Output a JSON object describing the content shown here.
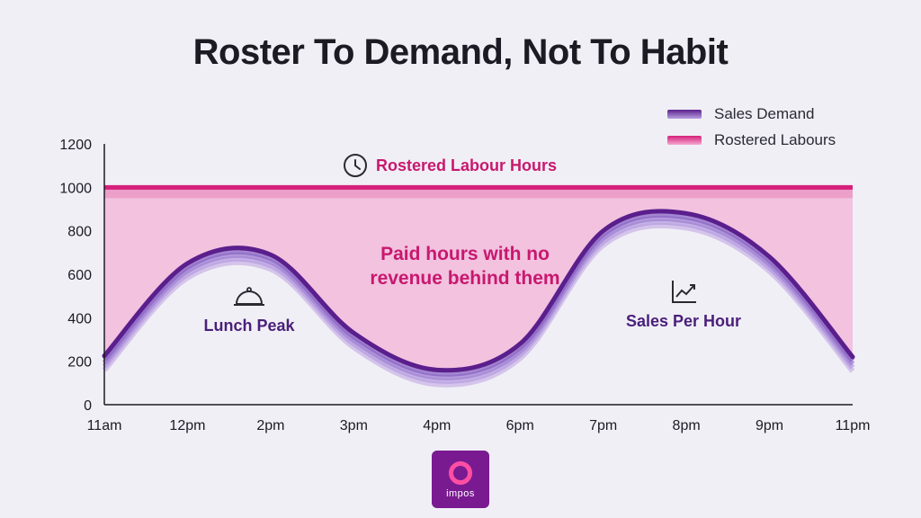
{
  "page": {
    "title": "Roster To Demand, Not To Habit"
  },
  "logo": {
    "text": "impos",
    "color": "#7a1a91"
  },
  "colors": {
    "demand": "#5a1f8c",
    "labour": "#d61f7a",
    "gap_fill": "#f1bfdd",
    "accent_text": "#c8186f",
    "demand_text": "#4a1f7a"
  },
  "legend": {
    "position": "top-right",
    "items": [
      {
        "label": "Sales Demand",
        "color": "#5a1f8c"
      },
      {
        "label": "Rostered Labours",
        "color": "#d61f7a"
      }
    ]
  },
  "annotations": {
    "labour_line": "Rostered Labour Hours",
    "gap_line1": "Paid hours with no",
    "gap_line2": "revenue behind them",
    "lunch": "Lunch Peak",
    "sales": "Sales Per Hour"
  },
  "chart_data": {
    "type": "area",
    "categories": [
      "11am",
      "12pm",
      "2pm",
      "3pm",
      "4pm",
      "6pm",
      "7pm",
      "8pm",
      "9pm",
      "11pm"
    ],
    "ylim": [
      0,
      1200
    ],
    "yticks": [
      0,
      200,
      400,
      600,
      800,
      1000,
      1200
    ],
    "grid": false,
    "series": [
      {
        "name": "Sales Demand",
        "values": [
          225,
          650,
          690,
          330,
          160,
          280,
          800,
          880,
          680,
          220
        ]
      },
      {
        "name": "Rostered Labours",
        "values": [
          1000,
          1000,
          1000,
          1000,
          1000,
          1000,
          1000,
          1000,
          1000,
          1000
        ]
      }
    ]
  }
}
